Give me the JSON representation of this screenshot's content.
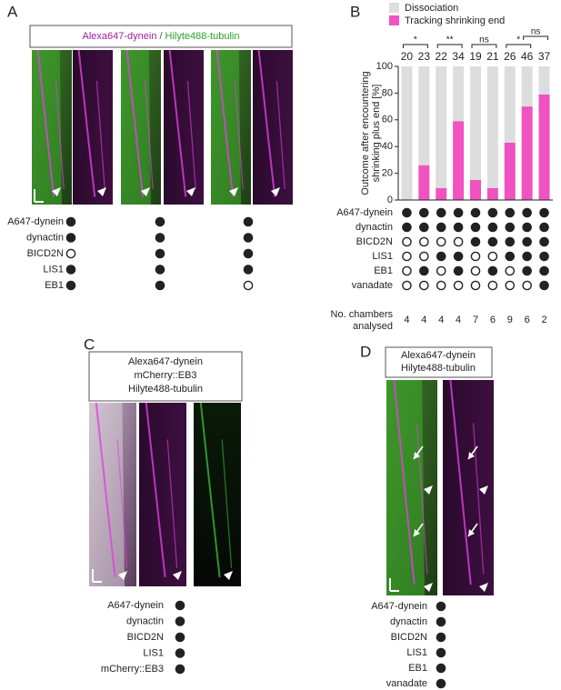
{
  "panel_A": {
    "label": "A",
    "legend": [
      "Alexa647-dynein",
      "/",
      "Hilyte488-tubulin"
    ],
    "conditions": {
      "rows": [
        "A647-dynein",
        "dynactin",
        "BICD2N",
        "LIS1",
        "EB1"
      ],
      "present": [
        [
          true,
          true,
          true
        ],
        [
          true,
          true,
          true
        ],
        [
          false,
          true,
          true
        ],
        [
          true,
          true,
          true
        ],
        [
          true,
          true,
          false
        ]
      ]
    }
  },
  "chart_data": {
    "type": "bar",
    "stacked": true,
    "label": "B",
    "categories": [
      null,
      null,
      null,
      null,
      null,
      null,
      null,
      null,
      null
    ],
    "series": [
      {
        "name": "Tracking shrinking end",
        "color": "#f052c0",
        "values": [
          0,
          26,
          9,
          59,
          15,
          9,
          43,
          70,
          79
        ]
      },
      {
        "name": "Dissociation",
        "color": "#dddddd",
        "values": [
          100,
          74,
          91,
          41,
          85,
          91,
          57,
          30,
          21
        ]
      }
    ],
    "legend_order": [
      1,
      0
    ],
    "ylabel": [
      "Outcome after encountering",
      "shrinking plus end [%]"
    ],
    "ylim": [
      0,
      100
    ],
    "yticks": [
      0,
      20,
      40,
      60,
      80,
      100
    ],
    "counts": {
      "color": "#f052c0",
      "values": [
        20,
        23,
        22,
        34,
        19,
        21,
        26,
        46,
        37
      ]
    },
    "comparisons": [
      {
        "from": 0,
        "to": 1,
        "label": "*"
      },
      {
        "from": 2,
        "to": 3,
        "label": "**"
      },
      {
        "from": 4,
        "to": 5,
        "label": "ns"
      },
      {
        "from": 6,
        "to": 7,
        "label": "*"
      },
      {
        "from": 7,
        "to": 8,
        "label": "ns"
      }
    ],
    "conditions": {
      "rows": [
        "A647-dynein",
        "dynactin",
        "BICD2N",
        "LIS1",
        "EB1",
        "vanadate"
      ],
      "present": [
        [
          true,
          true,
          true,
          true,
          true,
          true,
          true,
          true,
          true
        ],
        [
          true,
          true,
          true,
          true,
          true,
          true,
          true,
          true,
          true
        ],
        [
          false,
          false,
          false,
          false,
          true,
          true,
          true,
          true,
          true
        ],
        [
          false,
          false,
          true,
          true,
          false,
          false,
          true,
          true,
          true
        ],
        [
          false,
          true,
          false,
          true,
          false,
          true,
          false,
          true,
          true
        ],
        [
          false,
          false,
          false,
          false,
          false,
          false,
          false,
          false,
          true
        ]
      ]
    },
    "chambers": {
      "label": [
        "No. chambers",
        "analysed"
      ],
      "values": [
        4,
        4,
        4,
        4,
        7,
        6,
        9,
        6,
        2
      ]
    }
  },
  "panel_C": {
    "label": "C",
    "legend": [
      "Alexa647-dynein",
      "mCherry::EB3",
      "Hilyte488-tubulin"
    ],
    "conditions": {
      "rows": [
        "A647-dynein",
        "dynactin",
        "BICD2N",
        "LIS1",
        "mCherry::EB3"
      ],
      "present": [
        [
          true
        ],
        [
          true
        ],
        [
          true
        ],
        [
          true
        ],
        [
          true
        ]
      ]
    }
  },
  "panel_D": {
    "label": "D",
    "legend": [
      "Alexa647-dynein",
      "Hilyte488-tubulin"
    ],
    "conditions": {
      "rows": [
        "A647-dynein",
        "dynactin",
        "BICD2N",
        "LIS1",
        "EB1",
        "vanadate"
      ],
      "present": [
        [
          true
        ],
        [
          true
        ],
        [
          true
        ],
        [
          true
        ],
        [
          true
        ],
        [
          true
        ]
      ]
    }
  }
}
